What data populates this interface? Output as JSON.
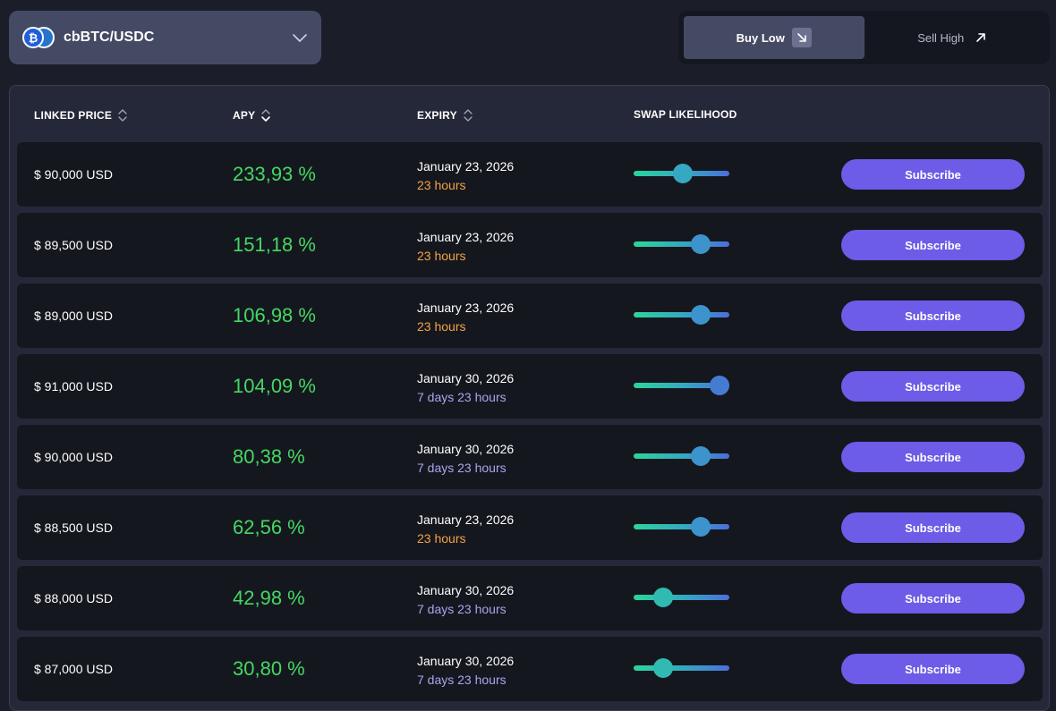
{
  "pair_selector": {
    "label": "cbBTC/USDC",
    "icon": "bitcoin-icon"
  },
  "mode_toggle": {
    "buy_low": "Buy Low",
    "sell_high": "Sell High",
    "active": "buy_low"
  },
  "table": {
    "headers": {
      "linked_price": "LINKED PRICE",
      "apy": "APY",
      "expiry": "EXPIRY",
      "swap_likelihood": "SWAP LIKELIHOOD"
    },
    "rows": [
      {
        "price": "$ 90,000 USD",
        "apy": "233,93 %",
        "date": "January 23, 2026",
        "remaining": "23 hours",
        "remaining_kind": "short",
        "likelihood": 0.51,
        "subscribe": "Subscribe"
      },
      {
        "price": "$ 89,500 USD",
        "apy": "151,18 %",
        "date": "January 23, 2026",
        "remaining": "23 hours",
        "remaining_kind": "short",
        "likelihood": 0.7,
        "subscribe": "Subscribe"
      },
      {
        "price": "$ 89,000 USD",
        "apy": "106,98 %",
        "date": "January 23, 2026",
        "remaining": "23 hours",
        "remaining_kind": "short",
        "likelihood": 0.7,
        "subscribe": "Subscribe"
      },
      {
        "price": "$ 91,000 USD",
        "apy": "104,09 %",
        "date": "January 30, 2026",
        "remaining": "7 days 23 hours",
        "remaining_kind": "long",
        "likelihood": 0.9,
        "subscribe": "Subscribe"
      },
      {
        "price": "$ 90,000 USD",
        "apy": "80,38 %",
        "date": "January 30, 2026",
        "remaining": "7 days 23 hours",
        "remaining_kind": "long",
        "likelihood": 0.7,
        "subscribe": "Subscribe"
      },
      {
        "price": "$ 88,500 USD",
        "apy": "62,56 %",
        "date": "January 23, 2026",
        "remaining": "23 hours",
        "remaining_kind": "short",
        "likelihood": 0.7,
        "subscribe": "Subscribe"
      },
      {
        "price": "$ 88,000 USD",
        "apy": "42,98 %",
        "date": "January 30, 2026",
        "remaining": "7 days 23 hours",
        "remaining_kind": "long",
        "likelihood": 0.31,
        "subscribe": "Subscribe"
      },
      {
        "price": "$ 87,000 USD",
        "apy": "30,80 %",
        "date": "January 30, 2026",
        "remaining": "7 days 23 hours",
        "remaining_kind": "long",
        "likelihood": 0.31,
        "subscribe": "Subscribe"
      }
    ]
  },
  "colors": {
    "apy_green": "#44d862",
    "short_expiry": "#f4a340",
    "long_expiry": "#a8a6f0",
    "accent": "#6c5ce7"
  }
}
